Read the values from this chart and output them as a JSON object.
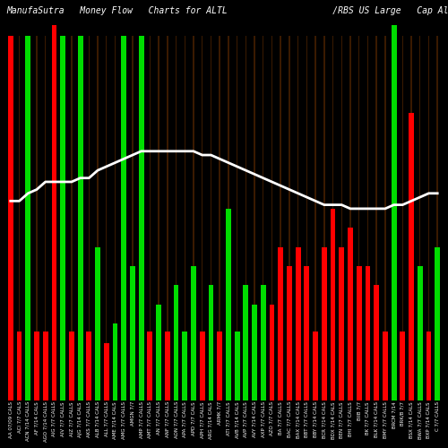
{
  "title": "ManufaSutra   Money Flow   Charts for ALTL                    /RBS US Large   Cap Alt",
  "background_color": "#000000",
  "bar_width": 0.6,
  "categories": [
    "AA 07/09 CALS",
    "ACI 7/7 CALS",
    "ACN 7/14 CALLS",
    "AF 7/14 CALS",
    "AGO 7/14 CALLS",
    "AIG 7/7 CALLS",
    "AIV 7/7 CALLS",
    "AIZ 7/7 CALLS",
    "AJG 7/14 CALS",
    "AKS 7/7 CALLS",
    "ALB 7/14 CALS",
    "ALL 7/7 CALLS",
    "AME 7/14 CALS",
    "AMG 7/7 CALLS",
    "AMGN 7/7",
    "AMP 7/7 CALLS",
    "AMT 7/7 CALLS",
    "AN 7/7 CALLS",
    "ANF 7/7 CALLS",
    "AON 7/7 CALLS",
    "APA 7/7 CALLS",
    "APD 7/7 CALS",
    "APH 7/7 CALLS",
    "ARG 7/14 CALS",
    "ARMK 7/7",
    "ATI 7/7 CALLS",
    "AVB 7/14 CALS",
    "AVP 7/7 CALLS",
    "AVY 7/14 CALS",
    "AXP 7/7 CALLS",
    "AZO 7/7 CALS",
    "BA 7/7 CALLS",
    "BAC 7/7 CALLS",
    "BAX 7/14 CALS",
    "BBT 7/7 CALLS",
    "BBY 7/14 CALS",
    "BCR 7/14 CALS",
    "BDX 7/14 CALS",
    "BEN 7/7 CALLS",
    "BHI 7/7 CALLS",
    "BIIB 7/7",
    "BK 7/7 CALLS",
    "BLK 7/14 CALS",
    "BMY 7/7 CALLS",
    "BRCM 7/14",
    "BRK/B 7/7",
    "BSX 7/14 CALS",
    "BWA 7/7 CALLS",
    "BXP 7/14 CALS",
    "C 7/7 CALLS"
  ],
  "bar_colors": [
    "red",
    "red",
    "green",
    "red",
    "red",
    "red",
    "green",
    "red",
    "green",
    "red",
    "green",
    "red",
    "green",
    "green",
    "green",
    "green",
    "red",
    "green",
    "red",
    "green",
    "green",
    "green",
    "red",
    "green",
    "red",
    "green",
    "green",
    "green",
    "green",
    "green",
    "red",
    "red",
    "red",
    "red",
    "red",
    "red",
    "red",
    "red",
    "red",
    "red",
    "red",
    "red",
    "red",
    "red",
    "green",
    "red",
    "red",
    "green",
    "red",
    "green"
  ],
  "bar_vals": [
    0.95,
    0.18,
    0.95,
    0.18,
    0.18,
    0.98,
    0.95,
    0.18,
    0.95,
    0.18,
    0.4,
    0.15,
    0.2,
    0.95,
    0.35,
    0.95,
    0.18,
    0.25,
    0.18,
    0.3,
    0.18,
    0.35,
    0.18,
    0.3,
    0.18,
    0.5,
    0.18,
    0.3,
    0.25,
    0.3,
    0.25,
    0.4,
    0.35,
    0.4,
    0.35,
    0.18,
    0.4,
    0.5,
    0.4,
    0.45,
    0.35,
    0.35,
    0.3,
    0.18,
    0.98,
    0.18,
    0.75,
    0.35,
    0.18,
    0.4
  ],
  "bg_bar_vals": [
    0.95,
    0.95,
    0.95,
    0.95,
    0.95,
    0.98,
    0.95,
    0.95,
    0.95,
    0.95,
    0.95,
    0.95,
    0.95,
    0.95,
    0.95,
    0.95,
    0.95,
    0.95,
    0.95,
    0.95,
    0.95,
    0.95,
    0.95,
    0.95,
    0.95,
    0.95,
    0.95,
    0.95,
    0.95,
    0.95,
    0.95,
    0.95,
    0.95,
    0.95,
    0.95,
    0.95,
    0.95,
    0.95,
    0.95,
    0.95,
    0.95,
    0.95,
    0.95,
    0.95,
    0.98,
    0.95,
    0.95,
    0.95,
    0.95,
    0.95
  ],
  "white_line_y": [
    0.52,
    0.52,
    0.54,
    0.55,
    0.57,
    0.57,
    0.57,
    0.57,
    0.58,
    0.58,
    0.6,
    0.61,
    0.62,
    0.63,
    0.64,
    0.65,
    0.65,
    0.65,
    0.65,
    0.65,
    0.65,
    0.65,
    0.64,
    0.64,
    0.63,
    0.62,
    0.61,
    0.6,
    0.59,
    0.58,
    0.57,
    0.56,
    0.55,
    0.54,
    0.53,
    0.52,
    0.51,
    0.51,
    0.51,
    0.5,
    0.5,
    0.5,
    0.5,
    0.5,
    0.51,
    0.51,
    0.52,
    0.53,
    0.54,
    0.54
  ],
  "ylim": [
    0.0,
    1.0
  ],
  "title_color": "#ffffff",
  "title_fontsize": 7,
  "tick_fontsize": 4,
  "tick_color": "#ffffff",
  "bg_bar_color": "#3a1a00"
}
